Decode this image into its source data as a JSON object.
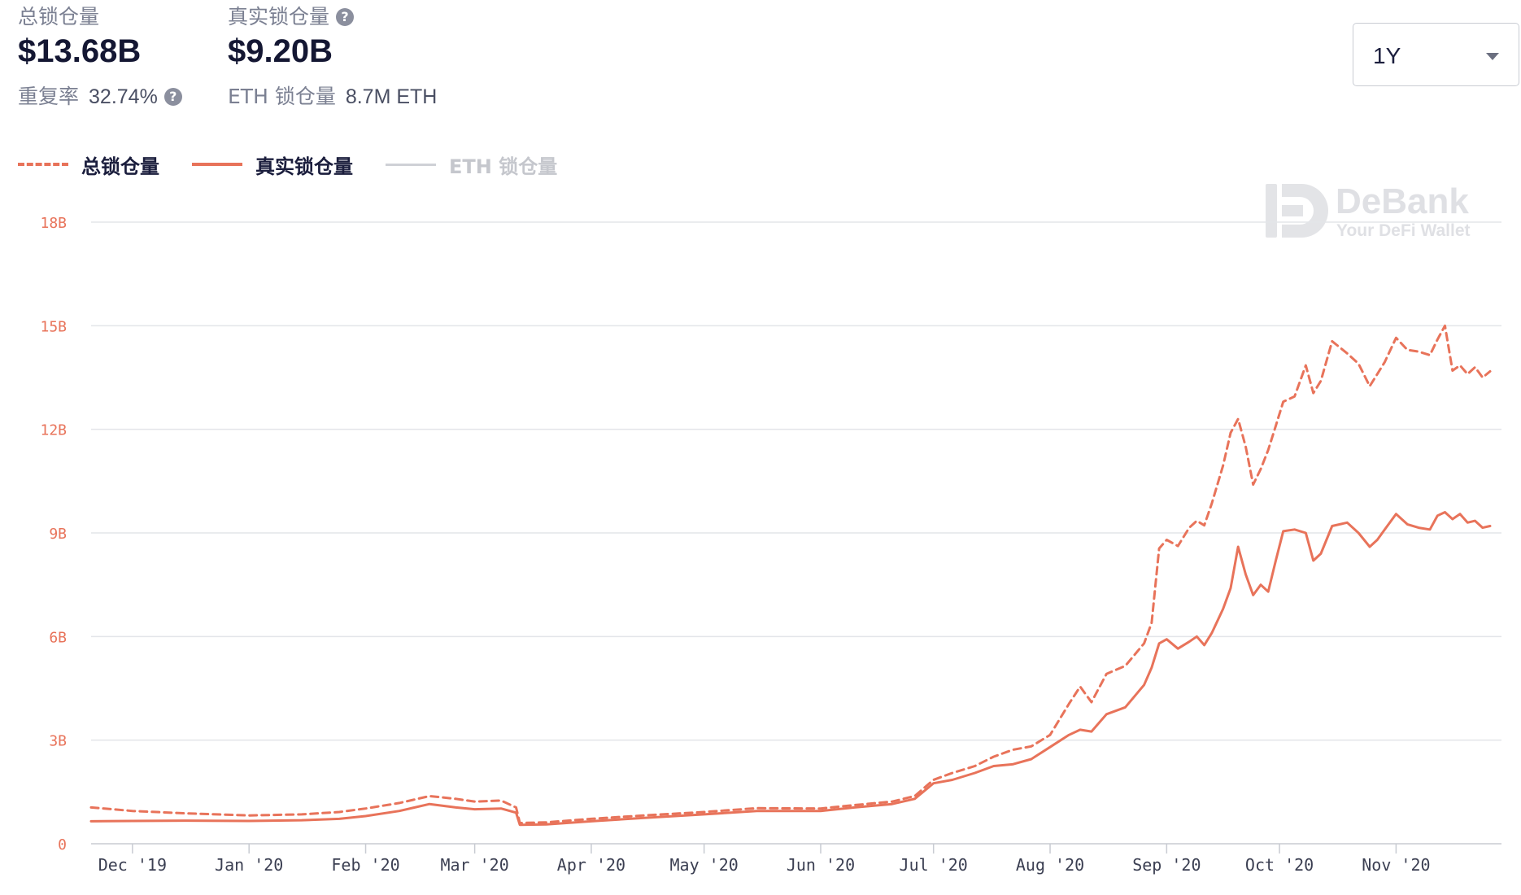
{
  "summary": {
    "total_label": "总锁仓量",
    "total_value": "$13.68B",
    "real_label": "真实锁仓量",
    "real_value": "$9.20B",
    "repeat_label": "重复率",
    "repeat_value": "32.74%",
    "eth_label": "ETH 锁仓量",
    "eth_value": "8.7M ETH",
    "help_icon": "?"
  },
  "period_select": {
    "value": "1Y",
    "icon": "chevron-down-icon"
  },
  "watermark": {
    "brand": "DeBank",
    "tagline": "Your DeFi Wallet"
  },
  "chart_data": {
    "type": "line",
    "yticks": [
      "0",
      "3B",
      "6B",
      "9B",
      "12B",
      "15B",
      "18B"
    ],
    "ylim": [
      0,
      18
    ],
    "y_unit": "B (USD)",
    "xlim": [
      "2019-11-20",
      "2020-11-14"
    ],
    "xticks": [
      {
        "date": "2019-12-01",
        "label": "Dec '19"
      },
      {
        "date": "2020-01-01",
        "label": "Jan '20"
      },
      {
        "date": "2020-02-01",
        "label": "Feb '20"
      },
      {
        "date": "2020-03-01",
        "label": "Mar '20"
      },
      {
        "date": "2020-04-01",
        "label": "Apr '20"
      },
      {
        "date": "2020-05-01",
        "label": "May '20"
      },
      {
        "date": "2020-06-01",
        "label": "Jun '20"
      },
      {
        "date": "2020-07-01",
        "label": "Jul '20"
      },
      {
        "date": "2020-08-01",
        "label": "Aug '20"
      },
      {
        "date": "2020-09-01",
        "label": "Sep '20"
      },
      {
        "date": "2020-10-01",
        "label": "Oct '20"
      },
      {
        "date": "2020-11-01",
        "label": "Nov '20"
      }
    ],
    "grid": true,
    "legend_position": "top-left",
    "series": [
      {
        "name": "总锁仓量",
        "style": "dashed",
        "color": "#e8735a",
        "visible": true,
        "points": [
          [
            "2019-11-20",
            1.05
          ],
          [
            "2019-12-01",
            0.95
          ],
          [
            "2019-12-15",
            0.88
          ],
          [
            "2020-01-01",
            0.82
          ],
          [
            "2020-01-15",
            0.85
          ],
          [
            "2020-01-25",
            0.92
          ],
          [
            "2020-02-01",
            1.02
          ],
          [
            "2020-02-10",
            1.18
          ],
          [
            "2020-02-18",
            1.38
          ],
          [
            "2020-02-25",
            1.3
          ],
          [
            "2020-03-01",
            1.22
          ],
          [
            "2020-03-08",
            1.25
          ],
          [
            "2020-03-12",
            1.05
          ],
          [
            "2020-03-13",
            0.6
          ],
          [
            "2020-03-20",
            0.62
          ],
          [
            "2020-04-01",
            0.72
          ],
          [
            "2020-04-15",
            0.82
          ],
          [
            "2020-05-01",
            0.92
          ],
          [
            "2020-05-15",
            1.03
          ],
          [
            "2020-06-01",
            1.02
          ],
          [
            "2020-06-10",
            1.12
          ],
          [
            "2020-06-20",
            1.22
          ],
          [
            "2020-06-26",
            1.38
          ],
          [
            "2020-07-01",
            1.85
          ],
          [
            "2020-07-06",
            2.05
          ],
          [
            "2020-07-12",
            2.25
          ],
          [
            "2020-07-17",
            2.52
          ],
          [
            "2020-07-22",
            2.72
          ],
          [
            "2020-07-27",
            2.82
          ],
          [
            "2020-08-01",
            3.15
          ],
          [
            "2020-08-06",
            4.05
          ],
          [
            "2020-08-09",
            4.55
          ],
          [
            "2020-08-12",
            4.1
          ],
          [
            "2020-08-16",
            4.92
          ],
          [
            "2020-08-21",
            5.15
          ],
          [
            "2020-08-26",
            5.8
          ],
          [
            "2020-08-28",
            6.4
          ],
          [
            "2020-08-30",
            8.55
          ],
          [
            "2020-09-01",
            8.8
          ],
          [
            "2020-09-04",
            8.62
          ],
          [
            "2020-09-07",
            9.15
          ],
          [
            "2020-09-09",
            9.35
          ],
          [
            "2020-09-11",
            9.22
          ],
          [
            "2020-09-13",
            9.85
          ],
          [
            "2020-09-16",
            10.95
          ],
          [
            "2020-09-18",
            11.9
          ],
          [
            "2020-09-20",
            12.3
          ],
          [
            "2020-09-22",
            11.5
          ],
          [
            "2020-09-24",
            10.4
          ],
          [
            "2020-09-26",
            10.85
          ],
          [
            "2020-09-28",
            11.4
          ],
          [
            "2020-09-30",
            12.1
          ],
          [
            "2020-10-02",
            12.8
          ],
          [
            "2020-10-05",
            12.95
          ],
          [
            "2020-10-08",
            13.85
          ],
          [
            "2020-10-10",
            13.05
          ],
          [
            "2020-10-12",
            13.4
          ],
          [
            "2020-10-15",
            14.55
          ],
          [
            "2020-10-19",
            14.2
          ],
          [
            "2020-10-22",
            13.9
          ],
          [
            "2020-10-25",
            13.25
          ],
          [
            "2020-10-27",
            13.6
          ],
          [
            "2020-10-29",
            13.95
          ],
          [
            "2020-11-01",
            14.65
          ],
          [
            "2020-11-04",
            14.3
          ],
          [
            "2020-11-07",
            14.25
          ],
          [
            "2020-11-10",
            14.15
          ],
          [
            "2020-11-12",
            14.6
          ],
          [
            "2020-11-14",
            15.0
          ],
          [
            "2020-11-16",
            13.7
          ],
          [
            "2020-11-18",
            13.85
          ],
          [
            "2020-11-20",
            13.6
          ],
          [
            "2020-11-22",
            13.8
          ],
          [
            "2020-11-24",
            13.5
          ],
          [
            "2020-11-26",
            13.68
          ]
        ]
      },
      {
        "name": "真实锁仓量",
        "style": "solid",
        "color": "#e8735a",
        "visible": true,
        "points": [
          [
            "2019-11-20",
            0.65
          ],
          [
            "2019-12-01",
            0.66
          ],
          [
            "2019-12-15",
            0.67
          ],
          [
            "2020-01-01",
            0.66
          ],
          [
            "2020-01-15",
            0.68
          ],
          [
            "2020-01-25",
            0.72
          ],
          [
            "2020-02-01",
            0.8
          ],
          [
            "2020-02-10",
            0.95
          ],
          [
            "2020-02-18",
            1.15
          ],
          [
            "2020-02-25",
            1.05
          ],
          [
            "2020-03-01",
            1.0
          ],
          [
            "2020-03-08",
            1.02
          ],
          [
            "2020-03-12",
            0.9
          ],
          [
            "2020-03-13",
            0.55
          ],
          [
            "2020-03-20",
            0.56
          ],
          [
            "2020-04-01",
            0.65
          ],
          [
            "2020-04-15",
            0.75
          ],
          [
            "2020-05-01",
            0.85
          ],
          [
            "2020-05-15",
            0.95
          ],
          [
            "2020-06-01",
            0.95
          ],
          [
            "2020-06-10",
            1.05
          ],
          [
            "2020-06-20",
            1.15
          ],
          [
            "2020-06-26",
            1.3
          ],
          [
            "2020-07-01",
            1.75
          ],
          [
            "2020-07-06",
            1.85
          ],
          [
            "2020-07-12",
            2.05
          ],
          [
            "2020-07-17",
            2.25
          ],
          [
            "2020-07-22",
            2.3
          ],
          [
            "2020-07-27",
            2.45
          ],
          [
            "2020-08-01",
            2.8
          ],
          [
            "2020-08-06",
            3.15
          ],
          [
            "2020-08-09",
            3.3
          ],
          [
            "2020-08-12",
            3.25
          ],
          [
            "2020-08-16",
            3.75
          ],
          [
            "2020-08-21",
            3.95
          ],
          [
            "2020-08-26",
            4.6
          ],
          [
            "2020-08-28",
            5.1
          ],
          [
            "2020-08-30",
            5.8
          ],
          [
            "2020-09-01",
            5.92
          ],
          [
            "2020-09-04",
            5.65
          ],
          [
            "2020-09-07",
            5.85
          ],
          [
            "2020-09-09",
            6.0
          ],
          [
            "2020-09-11",
            5.75
          ],
          [
            "2020-09-13",
            6.1
          ],
          [
            "2020-09-16",
            6.8
          ],
          [
            "2020-09-18",
            7.4
          ],
          [
            "2020-09-20",
            8.6
          ],
          [
            "2020-09-22",
            7.8
          ],
          [
            "2020-09-24",
            7.2
          ],
          [
            "2020-09-26",
            7.5
          ],
          [
            "2020-09-28",
            7.3
          ],
          [
            "2020-09-30",
            8.2
          ],
          [
            "2020-10-02",
            9.05
          ],
          [
            "2020-10-05",
            9.1
          ],
          [
            "2020-10-08",
            9.0
          ],
          [
            "2020-10-10",
            8.2
          ],
          [
            "2020-10-12",
            8.4
          ],
          [
            "2020-10-15",
            9.2
          ],
          [
            "2020-10-19",
            9.3
          ],
          [
            "2020-10-22",
            9.0
          ],
          [
            "2020-10-25",
            8.6
          ],
          [
            "2020-10-27",
            8.8
          ],
          [
            "2020-10-29",
            9.1
          ],
          [
            "2020-11-01",
            9.55
          ],
          [
            "2020-11-04",
            9.25
          ],
          [
            "2020-11-07",
            9.15
          ],
          [
            "2020-11-10",
            9.1
          ],
          [
            "2020-11-12",
            9.5
          ],
          [
            "2020-11-14",
            9.6
          ],
          [
            "2020-11-16",
            9.4
          ],
          [
            "2020-11-18",
            9.55
          ],
          [
            "2020-11-20",
            9.3
          ],
          [
            "2020-11-22",
            9.35
          ],
          [
            "2020-11-24",
            9.15
          ],
          [
            "2020-11-26",
            9.2
          ]
        ]
      },
      {
        "name": "ETH 锁仓量",
        "style": "solid",
        "color": "#cfd1d6",
        "visible": false,
        "points": []
      }
    ]
  }
}
